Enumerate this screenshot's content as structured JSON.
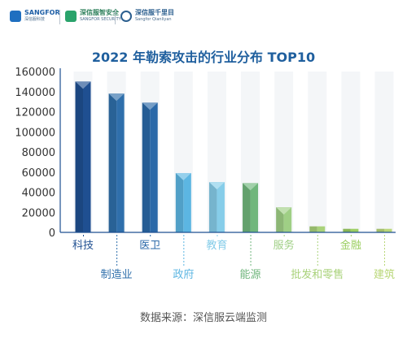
{
  "logos": {
    "sangfor": {
      "name": "SANGFOR",
      "sub": "深信服科技"
    },
    "security": {
      "name": "深信服智安全",
      "sub": "SANGFOR SECURITY"
    },
    "qianliyan": {
      "name": "深信服千里目",
      "sub": "Sangfor Qianliyan"
    }
  },
  "source_note": "数据来源：深信服云端监测",
  "colors": {
    "科技": "#1f4f91",
    "制造业": "#2f6fab",
    "医卫": "#2a68a8",
    "政府": "#5cb6e2",
    "教育": "#86cde9",
    "能源": "#6fb67c",
    "服务": "#9fcf85",
    "批发和零售": "#a9d27a",
    "金融": "#9ccf62",
    "建筑": "#b9d778"
  },
  "chart_data": {
    "type": "bar",
    "title": "2022 年勒索攻击的行业分布 TOP10",
    "categories": [
      "科技",
      "制造业",
      "医卫",
      "政府",
      "教育",
      "能源",
      "服务",
      "批发和零售",
      "金融",
      "建筑"
    ],
    "values": [
      150000,
      138000,
      129000,
      59000,
      50000,
      49000,
      25000,
      6000,
      3500,
      3500
    ],
    "ylim": [
      0,
      160000
    ],
    "yticks": [
      0,
      20000,
      40000,
      60000,
      80000,
      100000,
      120000,
      140000,
      160000
    ],
    "grid": false
  }
}
